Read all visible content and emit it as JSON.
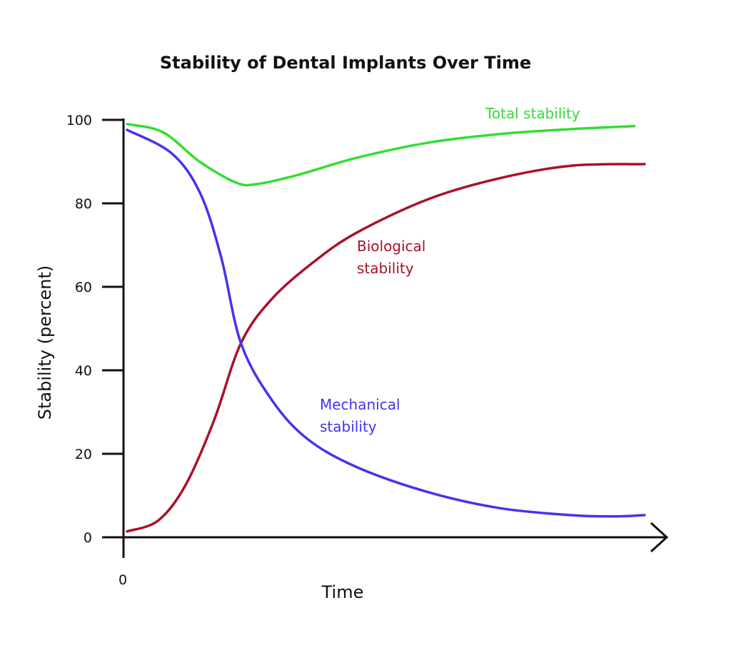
{
  "chart_data": {
    "type": "line",
    "title": "Stability of Dental Implants Over Time",
    "xlabel": "Time",
    "ylabel": "Stability (percent)",
    "xlim": [
      0,
      100
    ],
    "ylim": [
      0,
      100
    ],
    "x_tick_labels": [
      "0"
    ],
    "y_ticks": [
      0,
      20,
      40,
      60,
      80,
      100
    ],
    "y_tick_labels": [
      "0",
      "20",
      "40",
      "60",
      "80",
      "100"
    ],
    "grid": false,
    "legend": "inline-labels",
    "series": [
      {
        "name": "Total stability",
        "label_lines": [
          "Total stability"
        ],
        "color": "#33dd33",
        "x": [
          0,
          7,
          14,
          21,
          25,
          33,
          44,
          58,
          72,
          86,
          98
        ],
        "y": [
          99,
          97,
          90,
          85,
          84.6,
          86.8,
          90.8,
          94.5,
          96.6,
          97.8,
          98.5
        ]
      },
      {
        "name": "Biological stability",
        "label_lines": [
          "Biological",
          "stability"
        ],
        "color": "#a8122a",
        "x": [
          0,
          6,
          11.3,
          16.8,
          22,
          27.9,
          36.1,
          44.4,
          58.2,
          71.9,
          85.7,
          100
        ],
        "y": [
          1.4,
          4,
          12.5,
          28,
          46.5,
          57,
          66,
          73,
          81,
          86,
          89,
          89.4
        ]
      },
      {
        "name": "Mechanical stability",
        "label_lines": [
          "Mechanical",
          "stability"
        ],
        "color": "#4433ee",
        "x": [
          0,
          8.6,
          14.1,
          18.2,
          22,
          27.9,
          34.8,
          44.4,
          58.2,
          71.9,
          85.7,
          94,
          100
        ],
        "y": [
          97.6,
          92,
          82.5,
          67,
          46.5,
          33,
          23.6,
          16.8,
          10.8,
          7,
          5.3,
          5,
          5.3
        ]
      }
    ]
  }
}
